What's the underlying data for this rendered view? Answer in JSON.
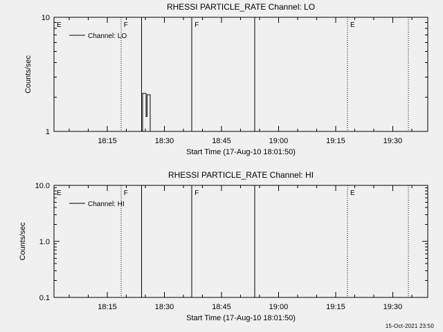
{
  "page": {
    "background_color": "#f0f0f0",
    "line_color": "#000000",
    "timestamp": "15-Oct-2021 23:50"
  },
  "chart_data": [
    {
      "type": "line",
      "title": "RHESSI PARTICLE_RATE Channel: LO",
      "xlabel": "Start Time (17-Aug-10 18:01:50)",
      "ylabel": "Counts/sec",
      "yscale": "log",
      "ylim": [
        1,
        10
      ],
      "yticks": [
        {
          "value": 1,
          "label": "1"
        },
        {
          "value": 10,
          "label": "10"
        }
      ],
      "xlim_minutes_after_1800": [
        1,
        99.2
      ],
      "xticks": [
        {
          "minutes": 15,
          "label": "18:15"
        },
        {
          "minutes": 30,
          "label": "18:30"
        },
        {
          "minutes": 45,
          "label": "18:45"
        },
        {
          "minutes": 60,
          "label": "19:00"
        },
        {
          "minutes": 75,
          "label": "19:15"
        },
        {
          "minutes": 90,
          "label": "19:30"
        }
      ],
      "x_minor_step_minutes": 5,
      "legend": {
        "label": "Channel: LO"
      },
      "series": [
        {
          "name": "Channel: LO",
          "points_t_v": [
            [
              1,
              1
            ],
            [
              24.3,
              1
            ],
            [
              24.3,
              2.15
            ],
            [
              25.2,
              2.15
            ],
            [
              25.2,
              1.35
            ],
            [
              25.5,
              1.35
            ],
            [
              25.5,
              2.1
            ],
            [
              26.3,
              2.1
            ],
            [
              26.3,
              1
            ],
            [
              99.2,
              1
            ]
          ]
        }
      ],
      "event_lines": [
        {
          "minutes": 1.0,
          "style": "dotted",
          "label": "E"
        },
        {
          "minutes": 18.6,
          "style": "dotted",
          "label": "F"
        },
        {
          "minutes": 24.0,
          "style": "solid",
          "label": ""
        },
        {
          "minutes": 37.2,
          "style": "solid",
          "label": "F"
        },
        {
          "minutes": 53.7,
          "style": "solid",
          "label": ""
        },
        {
          "minutes": 78.1,
          "style": "dotted",
          "label": "E"
        },
        {
          "minutes": 94.1,
          "style": "dotted",
          "label": ""
        }
      ]
    },
    {
      "type": "line",
      "title": "RHESSI PARTICLE_RATE Channel: HI",
      "xlabel": "Start Time (17-Aug-10 18:01:50)",
      "ylabel": "Counts/sec",
      "yscale": "log",
      "ylim": [
        0.1,
        10
      ],
      "yticks": [
        {
          "value": 0.1,
          "label": "0.1"
        },
        {
          "value": 1,
          "label": "1.0"
        },
        {
          "value": 10,
          "label": "10.0"
        }
      ],
      "xlim_minutes_after_1800": [
        1,
        99.2
      ],
      "xticks": [
        {
          "minutes": 15,
          "label": "18:15"
        },
        {
          "minutes": 30,
          "label": "18:30"
        },
        {
          "minutes": 45,
          "label": "18:45"
        },
        {
          "minutes": 60,
          "label": "19:00"
        },
        {
          "minutes": 75,
          "label": "19:15"
        },
        {
          "minutes": 90,
          "label": "19:30"
        }
      ],
      "x_minor_step_minutes": 5,
      "legend": {
        "label": "Channel: HI"
      },
      "series": [
        {
          "name": "Channel: HI",
          "points_t_v": [
            [
              1,
              0.1
            ],
            [
              99.2,
              0.1
            ]
          ]
        }
      ],
      "event_lines": [
        {
          "minutes": 1.0,
          "style": "dotted",
          "label": "E"
        },
        {
          "minutes": 18.6,
          "style": "dotted",
          "label": "F"
        },
        {
          "minutes": 24.0,
          "style": "solid",
          "label": ""
        },
        {
          "minutes": 37.2,
          "style": "solid",
          "label": "F"
        },
        {
          "minutes": 53.7,
          "style": "solid",
          "label": ""
        },
        {
          "minutes": 78.1,
          "style": "dotted",
          "label": "E"
        },
        {
          "minutes": 94.1,
          "style": "dotted",
          "label": ""
        }
      ]
    }
  ]
}
